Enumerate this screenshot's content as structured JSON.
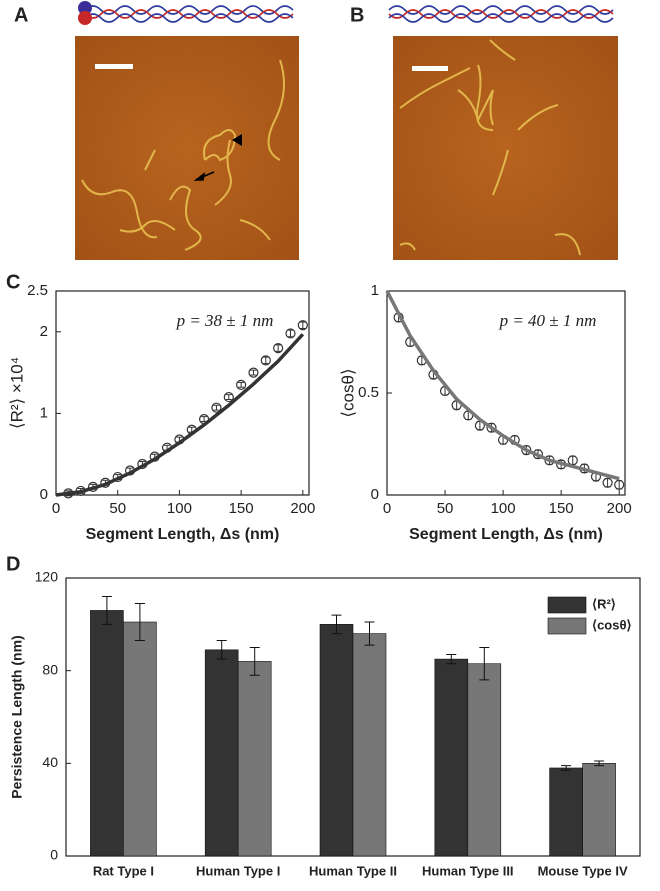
{
  "figure_labels": [
    "A",
    "B",
    "C",
    "D"
  ],
  "chart_data": [
    {
      "type": "scatter",
      "ylabel": "⟨R²⟩ ×10⁴",
      "xlabel": "Segment Length, Δs (nm)",
      "annotation": "p = 38 ± 1 nm",
      "xlim": [
        0,
        205
      ],
      "xticks": [
        0,
        50,
        100,
        150,
        200
      ],
      "ylim": [
        0,
        2.5
      ],
      "yticks": [
        0,
        1,
        2,
        2.5
      ],
      "series": [
        {
          "kind": "points",
          "color": "#333333",
          "x": [
            10,
            20,
            30,
            40,
            50,
            60,
            70,
            80,
            90,
            100,
            110,
            120,
            130,
            140,
            150,
            160,
            170,
            180,
            190,
            200
          ],
          "values": [
            0.02,
            0.05,
            0.1,
            0.15,
            0.22,
            0.3,
            0.38,
            0.47,
            0.58,
            0.68,
            0.8,
            0.93,
            1.07,
            1.2,
            1.35,
            1.5,
            1.65,
            1.8,
            1.98,
            2.08
          ],
          "errors": [
            0.03,
            0.03,
            0.03,
            0.03,
            0.03,
            0.03,
            0.03,
            0.03,
            0.03,
            0.03,
            0.03,
            0.03,
            0.03,
            0.03,
            0.03,
            0.03,
            0.04,
            0.04,
            0.04,
            0.04
          ]
        },
        {
          "kind": "line",
          "color": "#333333",
          "x": [
            0,
            20,
            40,
            60,
            80,
            100,
            120,
            140,
            160,
            180,
            200
          ],
          "values": [
            0,
            0.04,
            0.13,
            0.27,
            0.44,
            0.64,
            0.86,
            1.1,
            1.36,
            1.64,
            1.97
          ]
        }
      ]
    },
    {
      "type": "scatter",
      "ylabel": "⟨cosθ⟩",
      "xlabel": "Segment Length, Δs (nm)",
      "annotation": "p = 40 ± 1 nm",
      "xlim": [
        0,
        205
      ],
      "xticks": [
        0,
        50,
        100,
        150,
        200
      ],
      "ylim": [
        0,
        1
      ],
      "yticks": [
        0,
        0.5,
        1
      ],
      "series": [
        {
          "kind": "points",
          "color": "#333333",
          "x": [
            10,
            20,
            30,
            40,
            50,
            60,
            70,
            80,
            90,
            100,
            110,
            120,
            130,
            140,
            150,
            160,
            170,
            180,
            190,
            200
          ],
          "values": [
            0.87,
            0.75,
            0.66,
            0.59,
            0.51,
            0.44,
            0.39,
            0.34,
            0.33,
            0.27,
            0.27,
            0.22,
            0.2,
            0.17,
            0.15,
            0.17,
            0.13,
            0.09,
            0.06,
            0.05
          ],
          "errors": [
            0.02,
            0.02,
            0.02,
            0.02,
            0.02,
            0.02,
            0.02,
            0.02,
            0.02,
            0.02,
            0.02,
            0.02,
            0.02,
            0.02,
            0.02,
            0.02,
            0.02,
            0.02,
            0.02,
            0.02
          ]
        },
        {
          "kind": "line",
          "color": "#777777",
          "x": [
            0,
            20,
            40,
            60,
            80,
            100,
            120,
            140,
            160,
            180,
            200
          ],
          "values": [
            1,
            0.78,
            0.61,
            0.47,
            0.37,
            0.29,
            0.22,
            0.17,
            0.14,
            0.11,
            0.08
          ]
        }
      ]
    },
    {
      "type": "bar",
      "ylabel": "Persistence Length (nm)",
      "legend": "upper right",
      "categories": [
        "Rat Type I",
        "Human Type I",
        "Human Type II",
        "Human Type III",
        "Mouse Type IV"
      ],
      "ylim": [
        0,
        120
      ],
      "yticks": [
        0,
        40,
        80,
        120
      ],
      "series": [
        {
          "name": "⟨R²⟩",
          "color": "#333333",
          "values": [
            106,
            89,
            100,
            85,
            38
          ],
          "errors": [
            6,
            4,
            4,
            2,
            1
          ]
        },
        {
          "name": "⟨cosθ⟩",
          "color": "#777777",
          "values": [
            101,
            84,
            96,
            83,
            40
          ],
          "errors": [
            8,
            6,
            5,
            7,
            1
          ]
        }
      ]
    }
  ]
}
